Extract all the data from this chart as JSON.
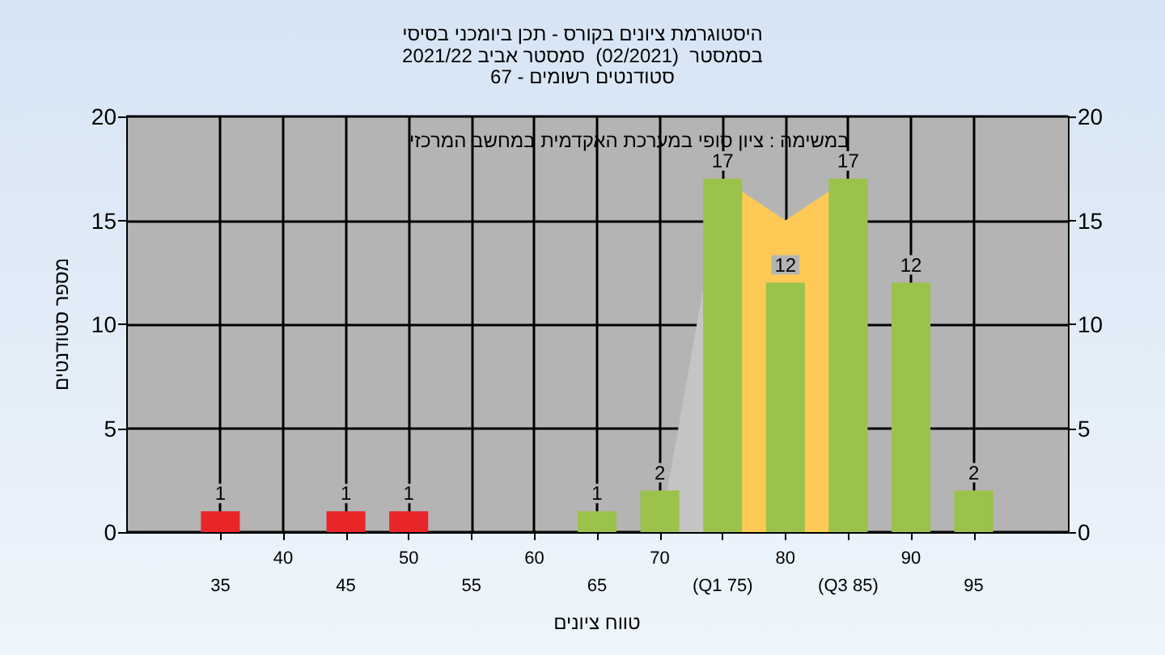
{
  "chart_data": {
    "type": "bar",
    "title": "היסטוגרמת ציונים בקורס - תכן ביומכני בסיסי",
    "subtitle": "בסמסטר  (02/2021)  סמסטר אביב 2021/22\nסטודנטים רשומים - 67",
    "xlabel": "טווח ציונים",
    "ylabel": "מספר סטודנטים",
    "annotations": [
      "במשימה : ציון סופי במערכת האקדמית במחשב המרכזי"
    ],
    "categories": [
      "35",
      "40",
      "45",
      "50",
      "55",
      "60",
      "65",
      "70",
      "(Q1 75)",
      "80",
      "(Q3 85)",
      "90",
      "95"
    ],
    "series": [
      {
        "type": "area",
        "color": "#c4c4c4",
        "values": [
          null,
          null,
          null,
          null,
          null,
          null,
          null,
          0,
          17,
          null,
          null,
          null,
          null
        ]
      },
      {
        "type": "area",
        "color": "#ffc955",
        "values": [
          null,
          null,
          null,
          null,
          null,
          null,
          null,
          null,
          17,
          15,
          17,
          null,
          null
        ]
      },
      {
        "colors": [
          "#e8262a",
          "#e8262a",
          "#e8262a",
          "#e8262a",
          "#e8262a",
          "#e8262a",
          "#9bc24a",
          "#9bc24a",
          "#9bc24a",
          "#9bc24a",
          "#9bc24a",
          "#9bc24a",
          "#9bc24a"
        ],
        "values": [
          1,
          0,
          1,
          1,
          0,
          0,
          1,
          2,
          17,
          12,
          17,
          12,
          2
        ],
        "value_labels": [
          "1",
          null,
          "1",
          "1",
          null,
          null,
          "1",
          "2",
          "17",
          "12",
          "17",
          "12",
          "2"
        ]
      }
    ],
    "ylim": [
      0,
      20
    ],
    "yticks": [
      0,
      5,
      10,
      15,
      20
    ],
    "y2lim": [
      0,
      20
    ],
    "y2ticks": [
      0,
      5,
      10,
      15,
      20
    ],
    "grid": true
  }
}
